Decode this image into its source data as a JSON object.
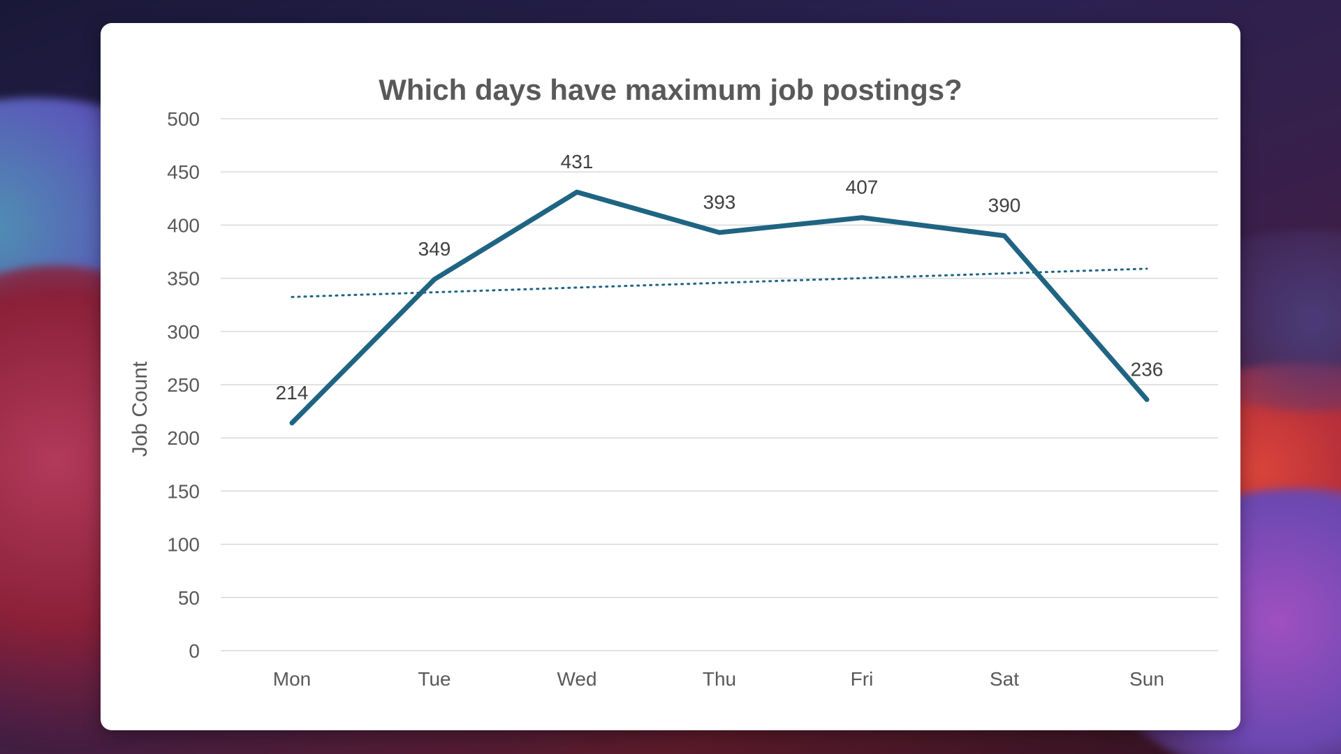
{
  "chart_data": {
    "type": "line",
    "title": "Which days have maximum job postings?",
    "xlabel": "",
    "ylabel": "Job Count",
    "categories": [
      "Mon",
      "Tue",
      "Wed",
      "Thu",
      "Fri",
      "Sat",
      "Sun"
    ],
    "series": [
      {
        "values": [
          214,
          349,
          431,
          393,
          407,
          390,
          236
        ],
        "color": "#1f6482",
        "data_labels": true
      }
    ],
    "trendline": {
      "type": "linear",
      "style": "dotted",
      "color": "#1f6482"
    },
    "ylim": [
      0,
      500
    ],
    "yticks": [
      0,
      50,
      100,
      150,
      200,
      250,
      300,
      350,
      400,
      450,
      500
    ],
    "grid": true,
    "legend": "none"
  }
}
